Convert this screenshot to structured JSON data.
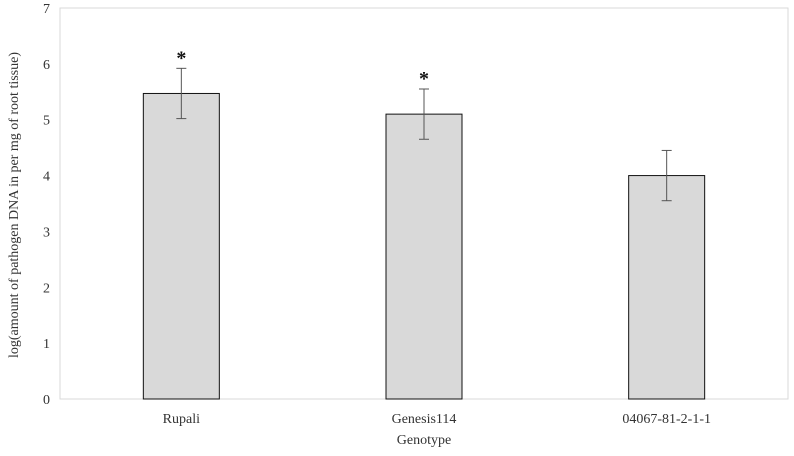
{
  "chart_data": {
    "type": "bar",
    "categories": [
      "Rupali",
      "Genesis114",
      "04067-81-2-1-1"
    ],
    "values": [
      5.47,
      5.1,
      4.0
    ],
    "errors": [
      0.45,
      0.45,
      0.45
    ],
    "annotations": [
      "*",
      "*",
      ""
    ],
    "xlabel": "Genotype",
    "ylabel": "log(amount of pathogen DNA in per mg of root tissue)",
    "ylim": [
      0,
      7
    ],
    "yticks": [
      0,
      1,
      2,
      3,
      4,
      5,
      6,
      7
    ],
    "grid": false,
    "colors": {
      "bar_fill": "#d9d9d9",
      "bar_stroke": "#111111",
      "axis": "#d9d9d9",
      "error_bar": "#555555"
    }
  }
}
